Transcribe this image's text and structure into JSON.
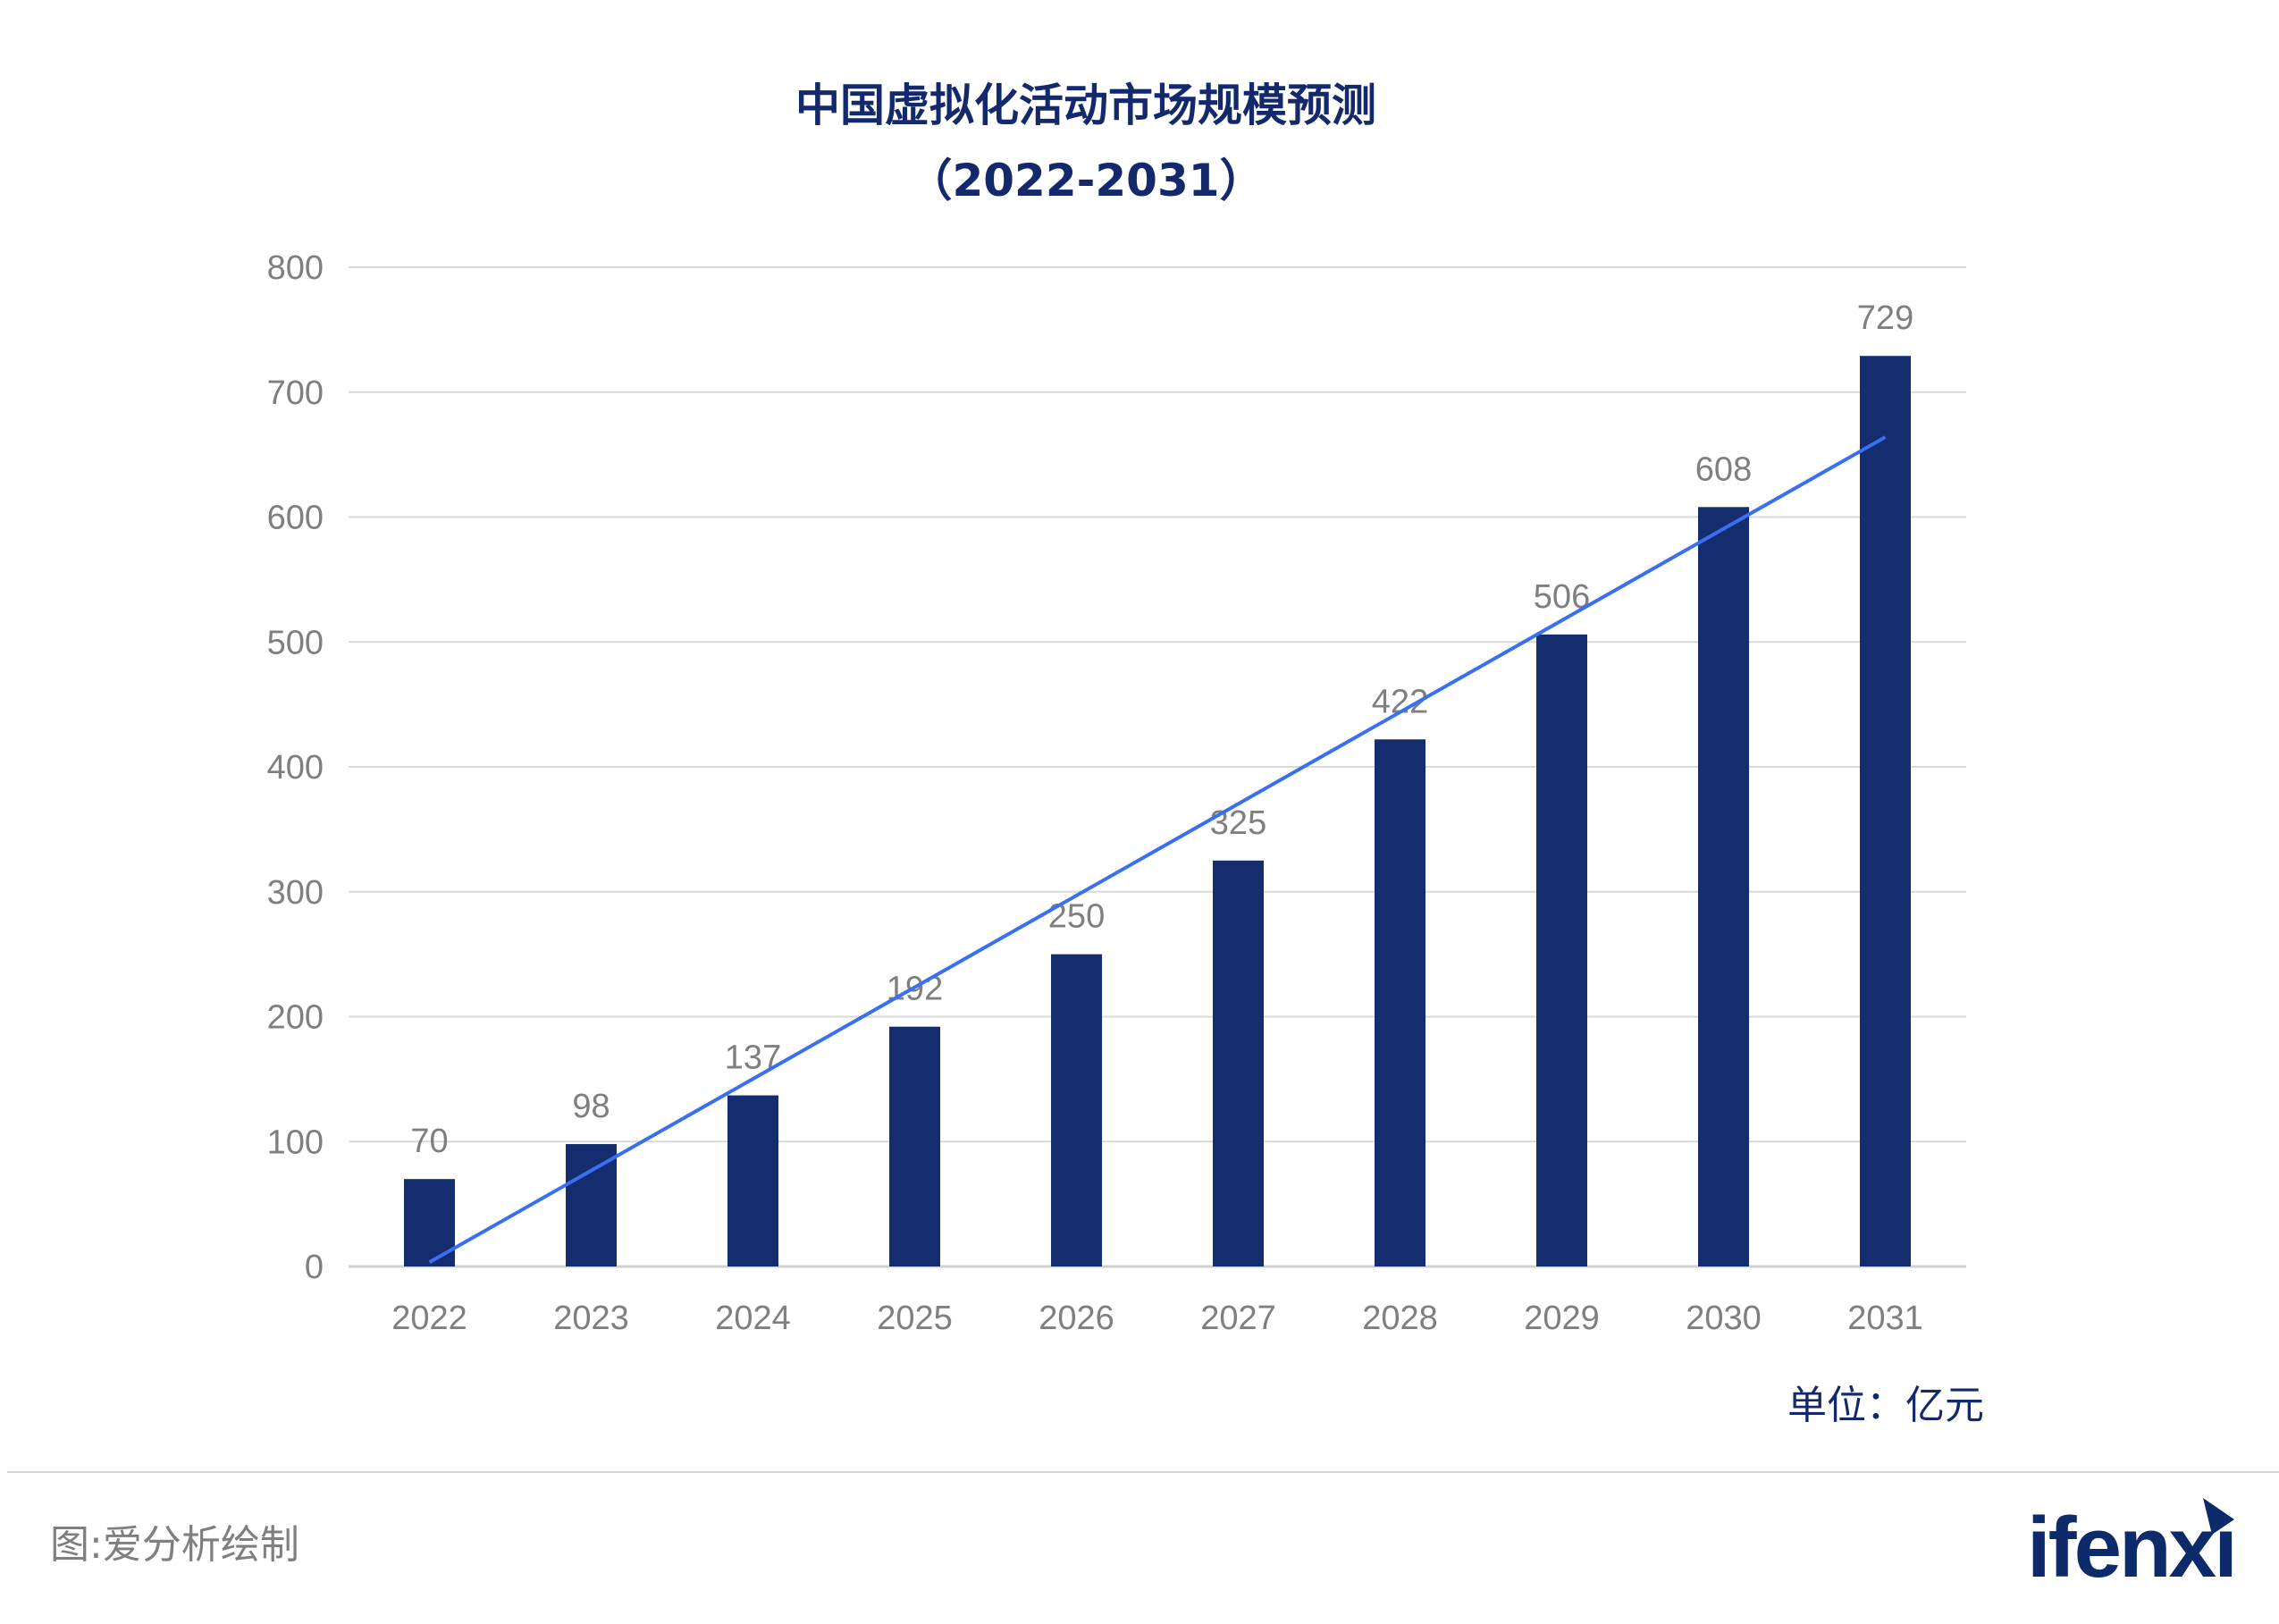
{
  "chart_data": {
    "type": "bar",
    "title": "中国虚拟化活动市场规模预测",
    "subtitle": "（2022-2031）",
    "categories": [
      "2022",
      "2023",
      "2024",
      "2025",
      "2026",
      "2027",
      "2028",
      "2029",
      "2030",
      "2031"
    ],
    "values": [
      70,
      98,
      137,
      192,
      250,
      325,
      422,
      506,
      608,
      729
    ],
    "ylim": [
      0,
      800
    ],
    "yticks": [
      "0",
      "100",
      "200",
      "300",
      "400",
      "500",
      "600",
      "700",
      "800"
    ],
    "grid": true,
    "trendline": "linear",
    "unit_label": "单位：亿元",
    "colors": {
      "bar": "#132d6e",
      "trendline": "#3a6ff0",
      "grid": "#d9d9d9",
      "title": "#13296b"
    }
  },
  "footer": {
    "source": "图:爱分析绘制",
    "logo": "ifenxi"
  }
}
